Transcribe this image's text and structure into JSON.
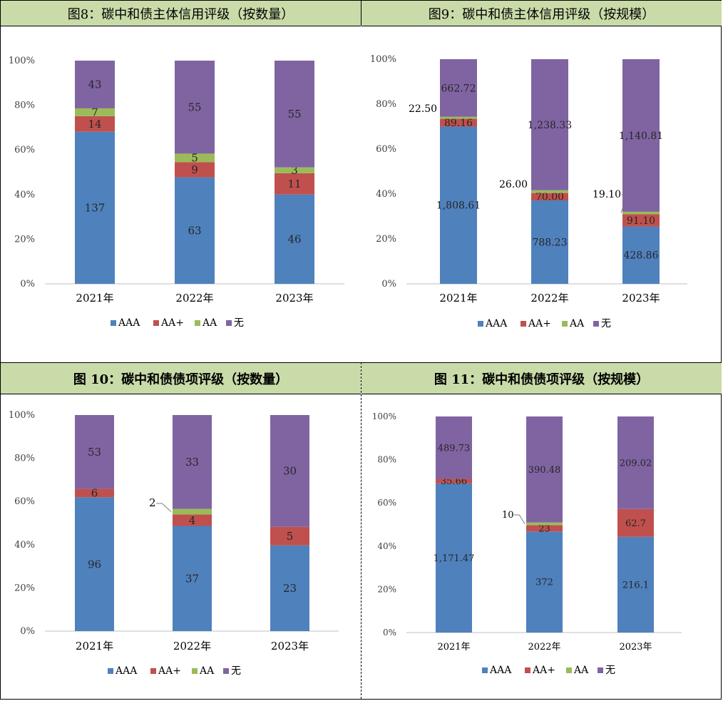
{
  "colors": {
    "AAA": "#4f81bd",
    "AA+": "#c0504d",
    "AA": "#9bbb59",
    "无": "#8064a2",
    "header_bg": "#c9dba8"
  },
  "legend": [
    "AAA",
    "AA+",
    "AA",
    "无"
  ],
  "y_ticks": [
    "0%",
    "20%",
    "40%",
    "60%",
    "80%",
    "100%"
  ],
  "panels": [
    {
      "title": "图8：碳中和债主体信用评级（按数量）"
    },
    {
      "title": "图9：碳中和债主体信用评级（按规模）"
    },
    {
      "title": "图 10：碳中和债债项评级（按数量）"
    },
    {
      "title": "图 11：碳中和债债项评级（按规模）"
    }
  ],
  "chart_data": [
    {
      "type": "bar",
      "stacked": "percent",
      "categories": [
        "2021年",
        "2022年",
        "2023年"
      ],
      "ylim": [
        0,
        100
      ],
      "series": [
        {
          "name": "AAA",
          "values": [
            137,
            63,
            46
          ],
          "labels": [
            "137",
            "63",
            "46"
          ]
        },
        {
          "name": "AA+",
          "values": [
            14,
            9,
            11
          ],
          "labels": [
            "14",
            "9",
            "11"
          ]
        },
        {
          "name": "AA",
          "values": [
            7,
            5,
            3
          ],
          "labels": [
            "7",
            "5",
            "3"
          ]
        },
        {
          "name": "无",
          "values": [
            43,
            55,
            55
          ],
          "labels": [
            "43",
            "55",
            "55"
          ]
        }
      ]
    },
    {
      "type": "bar",
      "stacked": "percent",
      "categories": [
        "2021年",
        "2022年",
        "2023年"
      ],
      "ylim": [
        0,
        100
      ],
      "series": [
        {
          "name": "AAA",
          "values": [
            1808.61,
            788.23,
            428.86
          ],
          "labels": [
            "1,808.61",
            "788.23",
            "428.86"
          ]
        },
        {
          "name": "AA+",
          "values": [
            89.16,
            70.0,
            91.1
          ],
          "labels": [
            "89.16",
            "70.00",
            "91.10"
          ]
        },
        {
          "name": "AA",
          "values": [
            22.5,
            26.0,
            19.1
          ],
          "labels": [
            "22.50",
            "26.00",
            "19.10"
          ]
        },
        {
          "name": "无",
          "values": [
            662.72,
            1238.33,
            1140.81
          ],
          "labels": [
            "662.72",
            "1,238.33",
            "1,140.81"
          ]
        }
      ]
    },
    {
      "type": "bar",
      "stacked": "percent",
      "categories": [
        "2021年",
        "2022年",
        "2023年"
      ],
      "ylim": [
        0,
        100
      ],
      "series": [
        {
          "name": "AAA",
          "values": [
            96,
            37,
            23
          ],
          "labels": [
            "96",
            "37",
            "23"
          ]
        },
        {
          "name": "AA+",
          "values": [
            6,
            4,
            5
          ],
          "labels": [
            "6",
            "4",
            "5"
          ]
        },
        {
          "name": "AA",
          "values": [
            0,
            2,
            0
          ],
          "labels": [
            "",
            "2",
            ""
          ]
        },
        {
          "name": "无",
          "values": [
            53,
            33,
            30
          ],
          "labels": [
            "53",
            "33",
            "30"
          ]
        }
      ]
    },
    {
      "type": "bar",
      "stacked": "percent",
      "categories": [
        "2021年",
        "2022年",
        "2023年"
      ],
      "ylim": [
        0,
        100
      ],
      "series": [
        {
          "name": "AAA",
          "values": [
            1171.47,
            372,
            216.1
          ],
          "labels": [
            "1,171.47",
            "372",
            "216.1"
          ]
        },
        {
          "name": "AA+",
          "values": [
            35.66,
            23,
            62.7
          ],
          "labels": [
            "35.66",
            "23",
            "62.7"
          ]
        },
        {
          "name": "AA",
          "values": [
            0,
            10,
            0
          ],
          "labels": [
            "",
            "10",
            ""
          ]
        },
        {
          "name": "无",
          "values": [
            489.73,
            390.48,
            209.02
          ],
          "labels": [
            "489.73",
            "390.48",
            "209.02"
          ]
        }
      ]
    }
  ]
}
